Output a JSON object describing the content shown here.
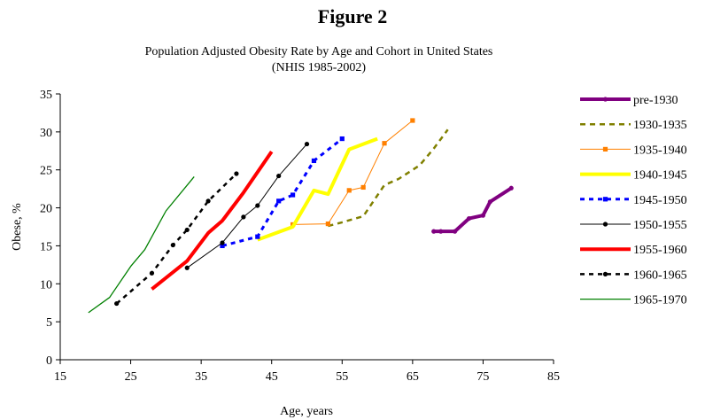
{
  "figure_label": "Figure 2",
  "chart_data": {
    "type": "line",
    "title": "Population Adjusted Obesity Rate by Age and Cohort in United States",
    "subtitle": "(NHIS 1985-2002)",
    "xlabel": "Age, years",
    "ylabel": "Obese, %",
    "xlim": [
      15,
      85
    ],
    "ylim": [
      0,
      35
    ],
    "xticks": [
      15,
      25,
      35,
      45,
      55,
      65,
      75,
      85
    ],
    "yticks": [
      0,
      5,
      10,
      15,
      20,
      25,
      30,
      35
    ],
    "grid": false,
    "legend_position": "right",
    "series": [
      {
        "name": "pre-1930",
        "color": "#800080",
        "width": 4,
        "dash": "",
        "marker": "circle",
        "x": [
          68,
          69,
          71,
          73,
          75,
          76,
          79
        ],
        "y": [
          16.9,
          16.9,
          16.9,
          18.6,
          19.0,
          20.8,
          22.6
        ]
      },
      {
        "name": "1930-1935",
        "color": "#808000",
        "width": 2.5,
        "dash": "6,5",
        "marker": "none",
        "x": [
          53,
          55,
          58,
          61,
          63,
          66,
          68,
          70
        ],
        "y": [
          17.6,
          18.1,
          18.9,
          23.0,
          23.8,
          25.6,
          27.8,
          30.3
        ]
      },
      {
        "name": "1935-1940",
        "color": "#FF8000",
        "width": 1,
        "dash": "",
        "marker": "square",
        "x": [
          48,
          53,
          56,
          58,
          61,
          65
        ],
        "y": [
          17.8,
          17.9,
          22.3,
          22.7,
          28.5,
          31.5
        ]
      },
      {
        "name": "1940-1945",
        "color": "#FFFF00",
        "width": 4,
        "dash": "",
        "marker": "none",
        "x": [
          43,
          48,
          51,
          53,
          56,
          60
        ],
        "y": [
          15.8,
          17.5,
          22.3,
          21.8,
          27.7,
          29.1
        ]
      },
      {
        "name": "1945-1950",
        "color": "#0000FF",
        "width": 3,
        "dash": "5,5",
        "marker": "square",
        "x": [
          38,
          43,
          46,
          48,
          51,
          55
        ],
        "y": [
          15.0,
          16.2,
          20.9,
          21.7,
          26.2,
          29.1
        ]
      },
      {
        "name": "1950-1955",
        "color": "#000000",
        "width": 1,
        "dash": "",
        "marker": "circle",
        "x": [
          33,
          38,
          41,
          43,
          46,
          50
        ],
        "y": [
          12.1,
          15.4,
          18.8,
          20.3,
          24.2,
          28.4
        ]
      },
      {
        "name": "1955-1960",
        "color": "#FF0000",
        "width": 4,
        "dash": "",
        "marker": "none",
        "x": [
          28,
          33,
          36,
          38,
          41,
          45
        ],
        "y": [
          9.3,
          13.0,
          16.7,
          18.3,
          22.0,
          27.4
        ]
      },
      {
        "name": "1960-1965",
        "color": "#000000",
        "width": 2.5,
        "dash": "5,5",
        "marker": "circle",
        "x": [
          23,
          28,
          31,
          33,
          36,
          40
        ],
        "y": [
          7.4,
          11.4,
          15.1,
          17.1,
          20.9,
          24.5
        ]
      },
      {
        "name": "1965-1970",
        "color": "#008000",
        "width": 1.3,
        "dash": "",
        "marker": "none",
        "x": [
          19,
          22,
          25,
          27,
          30,
          34
        ],
        "y": [
          6.2,
          8.2,
          12.3,
          14.5,
          19.6,
          24.1
        ]
      }
    ]
  }
}
